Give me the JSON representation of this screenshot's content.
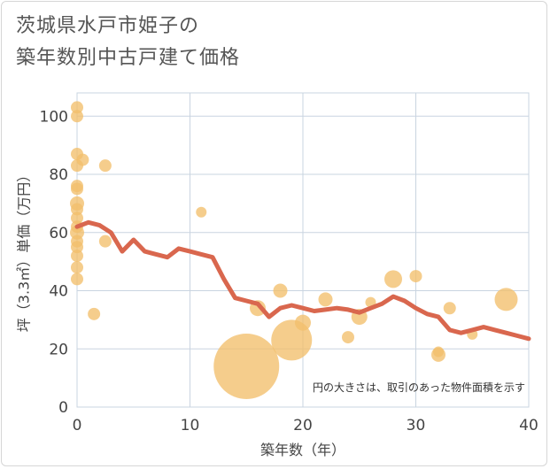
{
  "title_lines": [
    "茨城県水戸市姫子の",
    "築年数別中古戸建て価格"
  ],
  "colors": {
    "bubble": "#f2bf6b",
    "line": "#d9674e",
    "grid": "#c9d4e0",
    "plot_bg": "#ffffff",
    "text": "#444444"
  },
  "chart_data": {
    "type": "scatter",
    "xlabel": "築年数（年）",
    "ylabel": "坪（3.3㎡）単価（万円）",
    "xlim": [
      0,
      40
    ],
    "ylim": [
      0,
      108
    ],
    "x_ticks": [
      0,
      10,
      20,
      30,
      40
    ],
    "y_ticks": [
      0,
      20,
      40,
      60,
      80,
      100
    ],
    "x_tick_labels": [
      "0",
      "10",
      "20",
      "30",
      "40"
    ],
    "y_tick_labels": [
      "0",
      "20",
      "40",
      "60",
      "80",
      "100"
    ],
    "grid": true,
    "annotation": "円の大きさは、取引のあった物件面積を示す",
    "points": [
      {
        "x": 0,
        "y": 103,
        "size": 7
      },
      {
        "x": 0,
        "y": 100,
        "size": 7
      },
      {
        "x": 0,
        "y": 87,
        "size": 7
      },
      {
        "x": 0,
        "y": 83,
        "size": 7
      },
      {
        "x": 0,
        "y": 76,
        "size": 7
      },
      {
        "x": 0,
        "y": 75,
        "size": 7
      },
      {
        "x": 0,
        "y": 70,
        "size": 8
      },
      {
        "x": 0,
        "y": 68,
        "size": 7
      },
      {
        "x": 0,
        "y": 65,
        "size": 7
      },
      {
        "x": 0,
        "y": 62,
        "size": 7
      },
      {
        "x": 0,
        "y": 60,
        "size": 8
      },
      {
        "x": 0,
        "y": 57,
        "size": 7
      },
      {
        "x": 0,
        "y": 55,
        "size": 7
      },
      {
        "x": 0,
        "y": 52,
        "size": 7
      },
      {
        "x": 0,
        "y": 48,
        "size": 7
      },
      {
        "x": 0,
        "y": 44,
        "size": 7
      },
      {
        "x": 0.5,
        "y": 85,
        "size": 7
      },
      {
        "x": 1.5,
        "y": 32,
        "size": 7
      },
      {
        "x": 2.5,
        "y": 83,
        "size": 7
      },
      {
        "x": 2.5,
        "y": 57,
        "size": 7
      },
      {
        "x": 11,
        "y": 67,
        "size": 6
      },
      {
        "x": 15,
        "y": 14,
        "size": 37
      },
      {
        "x": 16,
        "y": 34,
        "size": 9
      },
      {
        "x": 18,
        "y": 40,
        "size": 8
      },
      {
        "x": 19,
        "y": 23,
        "size": 23
      },
      {
        "x": 20,
        "y": 29,
        "size": 9
      },
      {
        "x": 22,
        "y": 37,
        "size": 8
      },
      {
        "x": 24,
        "y": 24,
        "size": 7
      },
      {
        "x": 25,
        "y": 31,
        "size": 9
      },
      {
        "x": 26,
        "y": 36,
        "size": 6
      },
      {
        "x": 28,
        "y": 44,
        "size": 10
      },
      {
        "x": 30,
        "y": 45,
        "size": 7
      },
      {
        "x": 32,
        "y": 18,
        "size": 8
      },
      {
        "x": 32,
        "y": 19,
        "size": 6
      },
      {
        "x": 33,
        "y": 34,
        "size": 7
      },
      {
        "x": 35,
        "y": 25,
        "size": 6
      },
      {
        "x": 38,
        "y": 37,
        "size": 13
      }
    ],
    "trend": {
      "x": [
        0,
        1,
        2,
        3,
        4,
        5,
        6,
        7,
        8,
        9,
        10,
        11,
        12,
        13,
        14,
        15,
        16,
        17,
        18,
        19,
        20,
        21,
        22,
        23,
        24,
        25,
        26,
        27,
        28,
        29,
        30,
        31,
        32,
        33,
        34,
        35,
        36,
        37,
        38,
        39,
        40
      ],
      "y": [
        62,
        63.5,
        62.5,
        60,
        53.5,
        57.5,
        53.5,
        52.5,
        51.5,
        54.5,
        53.5,
        52.5,
        51.5,
        44,
        37.5,
        36.5,
        35.5,
        31,
        34,
        35,
        34,
        33,
        33.5,
        34,
        33.5,
        32.5,
        34,
        35.5,
        38,
        36.5,
        34,
        32,
        31,
        26.5,
        25.5,
        26.5,
        27.5,
        26.5,
        25.5,
        24.5,
        23.5
      ]
    }
  }
}
